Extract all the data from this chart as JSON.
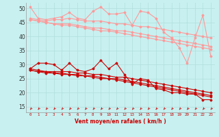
{
  "bg_color": "#c8f0f0",
  "grid_color": "#b0dede",
  "line_color_light": "#ff9999",
  "line_color_dark": "#cc0000",
  "xlabel": "Vent moyen/en rafales ( km/h )",
  "xlabel_color": "#cc0000",
  "x_ticks": [
    0,
    1,
    2,
    3,
    4,
    5,
    6,
    7,
    8,
    9,
    10,
    11,
    12,
    13,
    14,
    15,
    16,
    17,
    18,
    19,
    20,
    21,
    22,
    23
  ],
  "ylim": [
    13.0,
    52.0
  ],
  "yticks": [
    15,
    20,
    25,
    30,
    35,
    40,
    45,
    50
  ],
  "series_light": [
    [
      50.5,
      46.5,
      46.0,
      46.5,
      47.0,
      48.5,
      46.5,
      46.0,
      49.0,
      50.5,
      48.0,
      48.0,
      48.5,
      44.0,
      49.0,
      48.5,
      46.5,
      41.5,
      39.5,
      36.0,
      30.5,
      39.5,
      47.5,
      33.0
    ],
    [
      46.5,
      46.0,
      45.5,
      46.0,
      46.0,
      46.5,
      46.0,
      45.5,
      45.5,
      45.5,
      45.0,
      44.5,
      44.5,
      44.0,
      43.5,
      43.5,
      43.0,
      42.5,
      42.0,
      41.5,
      41.0,
      40.5,
      40.0,
      39.5
    ],
    [
      46.0,
      45.5,
      45.0,
      44.5,
      44.5,
      44.5,
      44.0,
      43.5,
      43.0,
      43.0,
      42.5,
      42.0,
      42.0,
      41.5,
      41.0,
      40.5,
      40.0,
      39.5,
      39.0,
      38.5,
      38.0,
      37.5,
      37.0,
      36.5
    ],
    [
      46.0,
      45.5,
      45.0,
      44.5,
      44.0,
      44.0,
      43.5,
      43.0,
      42.5,
      42.0,
      42.0,
      41.5,
      41.0,
      40.5,
      40.0,
      39.5,
      39.0,
      38.5,
      38.0,
      37.5,
      37.0,
      36.5,
      36.0,
      35.5
    ]
  ],
  "series_dark": [
    [
      28.5,
      30.5,
      30.5,
      30.0,
      28.0,
      30.5,
      28.0,
      27.5,
      28.5,
      31.5,
      28.5,
      30.5,
      26.5,
      23.0,
      25.0,
      24.5,
      21.5,
      21.0,
      20.0,
      20.0,
      19.5,
      19.5,
      17.5,
      17.5
    ],
    [
      28.5,
      28.0,
      27.5,
      27.5,
      27.5,
      27.5,
      27.0,
      27.0,
      26.5,
      26.5,
      26.0,
      25.5,
      25.5,
      25.0,
      24.5,
      24.0,
      23.5,
      23.0,
      22.5,
      22.0,
      21.5,
      21.0,
      20.5,
      20.0
    ],
    [
      28.0,
      27.5,
      27.5,
      27.0,
      27.0,
      26.5,
      26.5,
      26.0,
      26.0,
      25.5,
      25.0,
      25.0,
      24.5,
      24.0,
      23.5,
      23.0,
      22.5,
      22.0,
      21.5,
      21.0,
      20.5,
      20.0,
      19.5,
      19.0
    ],
    [
      28.0,
      27.5,
      27.0,
      27.0,
      26.5,
      26.5,
      26.0,
      26.0,
      25.5,
      25.0,
      25.0,
      24.5,
      24.0,
      23.5,
      23.0,
      22.5,
      22.0,
      21.5,
      21.0,
      20.5,
      20.0,
      19.5,
      19.0,
      18.5
    ]
  ]
}
